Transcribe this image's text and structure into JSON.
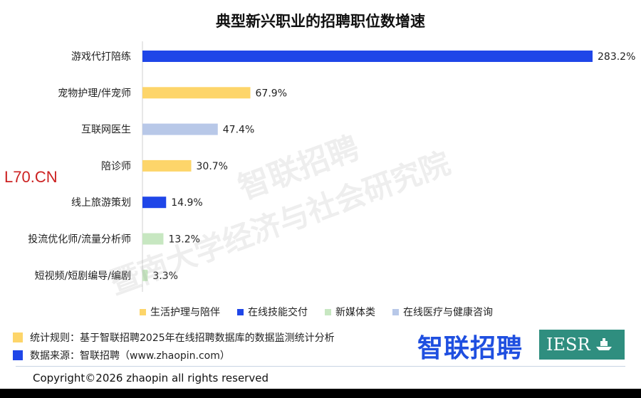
{
  "title": "典型新兴职业的招聘职位数增速",
  "chart_data": {
    "type": "bar",
    "orientation": "horizontal",
    "title": "典型新兴职业的招聘职位数增速",
    "categories": [
      "游戏代打陪练",
      "宠物护理/伴宠师",
      "互联网医生",
      "陪诊师",
      "线上旅游策划",
      "投流优化师/流量分析师",
      "短视频/短剧编导/编剧"
    ],
    "values": [
      283.2,
      67.9,
      47.4,
      30.7,
      14.9,
      13.2,
      3.3
    ],
    "value_labels": [
      "283.2%",
      "67.9%",
      "47.4%",
      "30.7%",
      "14.9%",
      "13.2%",
      "3.3%"
    ],
    "groups": [
      "在线技能交付",
      "生活护理与陪伴",
      "在线医疗与健康咨询",
      "生活护理与陪伴",
      "在线技能交付",
      "新媒体类",
      "新媒体类"
    ],
    "xlim": [
      0,
      283.2
    ],
    "xlabel": "",
    "ylabel": "",
    "grid": false,
    "legend": {
      "placement": "bottom",
      "entries": [
        {
          "name": "生活护理与陪伴",
          "color": "#fdd56a"
        },
        {
          "name": "在线技能交付",
          "color": "#1f46e8"
        },
        {
          "name": "新媒体类",
          "color": "#c7e7c1"
        },
        {
          "name": "在线医疗与健康咨询",
          "color": "#b8c8e8"
        }
      ]
    }
  },
  "notes": [
    {
      "text": "统计规则：基于智联招聘2025年在线招聘数据库的数据监测统计分析",
      "color": "#fdd56a"
    },
    {
      "text": "数据来源：智联招聘（www.zhaopin.com）",
      "color": "#1f46e8"
    }
  ],
  "brand_logo": "智联招聘",
  "partner_logo": "IESR",
  "watermark": [
    "智联招聘",
    "暨南大学经济与社会研究院"
  ],
  "corner_mark": "L70.CN",
  "copyright": "Copyright©2026 zhaopin all rights reserved"
}
